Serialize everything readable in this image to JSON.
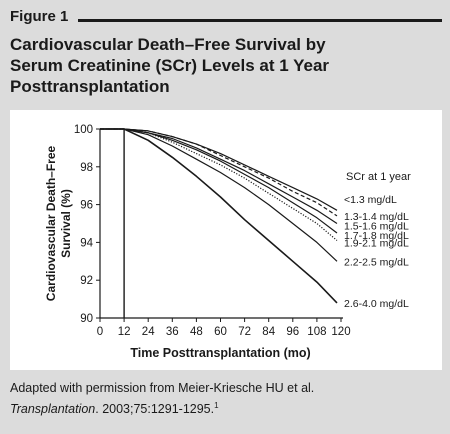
{
  "figure": {
    "label": "Figure 1",
    "title_line1": "Cardiovascular Death–Free Survival by",
    "title_line2": "Serum Creatinine (SCr) Levels at 1 Year",
    "title_line3": "Posttransplantation"
  },
  "caption": {
    "text": "Adapted with permission from Meier-Kriesche HU et al.",
    "journal": "Transplantation",
    "citation": ". 2003;75:1291-1295.",
    "ref": "1"
  },
  "chart_data": {
    "type": "line",
    "xlabel": "Time Posttransplantation (mo)",
    "ylabel_line1": "Cardiovascular Death–Free",
    "ylabel_line2": "Survival (%)",
    "xlim": [
      0,
      120
    ],
    "ylim": [
      90,
      100
    ],
    "x_ticks": [
      0,
      12,
      24,
      36,
      48,
      60,
      72,
      84,
      96,
      108,
      120
    ],
    "y_ticks": [
      90,
      92,
      94,
      96,
      98,
      100
    ],
    "vline_x": 12,
    "legend_title": "SCr at 1 year",
    "x": [
      0,
      12,
      24,
      36,
      48,
      60,
      72,
      84,
      96,
      108,
      118
    ],
    "series": [
      {
        "name": "<1.3 mg/dL",
        "dash": "solid",
        "values": [
          100,
          100,
          99.9,
          99.6,
          99.2,
          98.7,
          98.1,
          97.5,
          96.9,
          96.3,
          95.7
        ]
      },
      {
        "name": "1.3-1.4 mg/dL",
        "dash": "dashed",
        "values": [
          100,
          100,
          99.9,
          99.6,
          99.2,
          98.6,
          98.0,
          97.4,
          96.7,
          96.1,
          95.4
        ]
      },
      {
        "name": "1.5-1.6 mg/dL",
        "dash": "solid",
        "values": [
          100,
          100,
          99.8,
          99.5,
          99.0,
          98.4,
          97.8,
          97.1,
          96.4,
          95.7,
          95.0
        ]
      },
      {
        "name": "1.7-1.8 mg/dL",
        "dash": "solid",
        "values": [
          100,
          100,
          99.8,
          99.4,
          98.9,
          98.3,
          97.6,
          96.9,
          96.1,
          95.3,
          94.5
        ]
      },
      {
        "name": "1.9-2.1 mg/dL",
        "dash": "dotted",
        "values": [
          100,
          100,
          99.8,
          99.3,
          98.7,
          98.1,
          97.4,
          96.6,
          95.8,
          95.0,
          94.1
        ]
      },
      {
        "name": "2.2-2.5 mg/dL",
        "dash": "solid",
        "values": [
          100,
          100,
          99.7,
          99.1,
          98.4,
          97.7,
          96.9,
          96.0,
          95.0,
          94.0,
          93.0
        ]
      },
      {
        "name": "2.6-4.0 mg/dL",
        "dash": "solid",
        "values": [
          100,
          100,
          99.4,
          98.5,
          97.5,
          96.4,
          95.2,
          94.1,
          93.0,
          91.9,
          90.8
        ]
      }
    ],
    "label_y": [
      96.3,
      95.4,
      94.9,
      94.4,
      94.0,
      93.0,
      90.8
    ]
  }
}
